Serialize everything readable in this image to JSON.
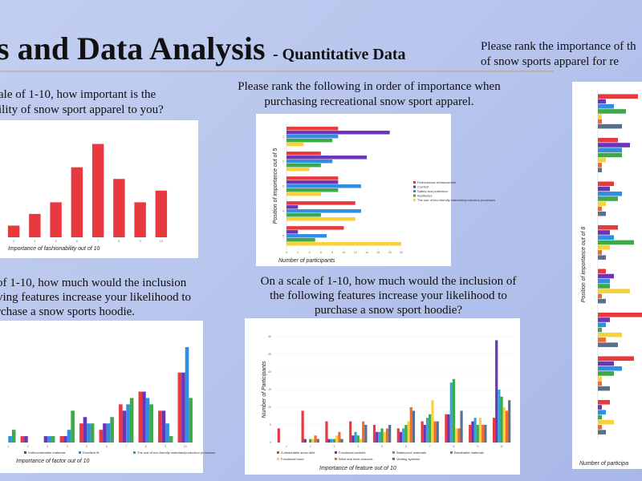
{
  "header": {
    "title": "s and Data Analysis",
    "subtitle": "- Quantitative Data"
  },
  "chart_data": [
    {
      "type": "bar",
      "title": [
        "ale of 1-10, how important is the",
        "ility of snow sport apparel to you?"
      ],
      "xlabel": "Importance of fashionability out of 10",
      "categories": [
        "3",
        "4",
        "5",
        "6",
        "7",
        "8",
        "9",
        "10"
      ],
      "values": [
        1,
        2,
        3,
        6,
        8,
        5,
        3,
        4
      ],
      "color": "#e8393e",
      "ylim": [
        0,
        9
      ]
    },
    {
      "type": "hbar",
      "title": [
        "Please rank the following in order of importance when",
        "purchasing recreational snow sport apparel."
      ],
      "xlabel": "Number of participants",
      "ylabel": "Position of importance out of 5",
      "categories": [
        "1",
        "2",
        "3",
        "4",
        "5"
      ],
      "xlim": [
        0,
        20
      ],
      "xticks": [
        0,
        2,
        4,
        6,
        8,
        10,
        12,
        14,
        16,
        18,
        20
      ],
      "series": [
        {
          "name": "Performance enhancement",
          "color": "#e8393e",
          "values": [
            9,
            6,
            9,
            12,
            10
          ]
        },
        {
          "name": "Comfort",
          "color": "#6a35b8",
          "values": [
            18,
            14,
            9,
            2,
            2
          ]
        },
        {
          "name": "Safety and protection",
          "color": "#2f8fe0",
          "values": [
            9,
            8,
            13,
            13,
            7
          ]
        },
        {
          "name": "Aesthetics",
          "color": "#3fa84a",
          "values": [
            8,
            6,
            9,
            6,
            5
          ]
        },
        {
          "name": "The use of eco-friendly materials/production processes",
          "color": "#f7d23a",
          "values": [
            3,
            4,
            6,
            12,
            20
          ]
        }
      ]
    },
    {
      "type": "bar",
      "title": [
        "of 1-10, how much would the inclusion",
        "ving features increase your likelihood to",
        "rchase a snow sports hoodie."
      ],
      "xlabel": "Importance of factor out of 10",
      "categories": [
        "1",
        "2",
        "3",
        "4",
        "5",
        "6",
        "7",
        "8",
        "9",
        "10"
      ],
      "ylim": [
        0,
        16
      ],
      "series": [
        {
          "color": "#e8393e",
          "values": [
            0,
            1,
            0,
            1,
            3,
            2,
            6,
            8,
            5,
            11
          ]
        },
        {
          "name": "Soft/comfortable materials",
          "color": "#6a35b8",
          "values": [
            0,
            1,
            1,
            1,
            4,
            3,
            5,
            8,
            5,
            11
          ]
        },
        {
          "name": "Excellent fit",
          "color": "#2f8fe0",
          "values": [
            1,
            0,
            1,
            2,
            3,
            3,
            6,
            7,
            3,
            15
          ]
        },
        {
          "name": "The use of eco-friendly materials/production processes",
          "color": "#3fa84a",
          "values": [
            2,
            0,
            1,
            5,
            3,
            4,
            7,
            6,
            1,
            7
          ]
        }
      ]
    },
    {
      "type": "bar",
      "title": [
        "On a scale of 1-10, how much would the inclusion of",
        "the following features increase your likelihood to",
        "purchase a snow sport hoodie?"
      ],
      "xlabel": "Importance of feature out of 10",
      "ylabel": "Number of Participants",
      "categories": [
        "1",
        "2",
        "3",
        "4",
        "5",
        "6",
        "7",
        "8",
        "9",
        "10"
      ],
      "ylim": [
        0,
        30
      ],
      "yticks": [
        0,
        5,
        10,
        15,
        20,
        25,
        30
      ],
      "series": [
        {
          "name": "A detachable snow skirt",
          "color": "#e8393e",
          "values": [
            4,
            9,
            6,
            6,
            5,
            4,
            6,
            8,
            5,
            7
          ]
        },
        {
          "name": "Functional pockets",
          "color": "#6a35b8",
          "values": [
            0,
            1,
            1,
            2,
            3,
            3,
            5,
            8,
            6,
            29
          ]
        },
        {
          "name": "Waterproof materials",
          "color": "#2fa8d8",
          "values": [
            0,
            0,
            1,
            3,
            3,
            4,
            7,
            17,
            7,
            15
          ]
        },
        {
          "name": "Breathable materials",
          "color": "#3fa84a",
          "values": [
            0,
            1,
            1,
            2,
            4,
            5,
            8,
            18,
            5,
            13
          ]
        },
        {
          "name": "Functional hood",
          "color": "#f7d23a",
          "values": [
            0,
            1,
            2,
            1,
            3,
            6,
            12,
            4,
            7,
            10
          ]
        },
        {
          "name": "Wind and neck closures",
          "color": "#f26b2a",
          "values": [
            0,
            2,
            3,
            6,
            4,
            10,
            6,
            4,
            5,
            9
          ]
        },
        {
          "name": "Venting systems",
          "color": "#5a6f8c",
          "values": [
            0,
            1,
            1,
            5,
            5,
            9,
            6,
            9,
            5,
            12
          ]
        }
      ]
    },
    {
      "type": "hbar",
      "title": [
        "Please rank the importance of th",
        "of snow sports apparel for re"
      ],
      "xlabel": "Number of participa",
      "ylabel": "Position of importance out of 8",
      "xlim": [
        0,
        12
      ],
      "series": [
        {
          "color": "#e8393e",
          "values": [
            10,
            5,
            4,
            5,
            2,
            12,
            9,
            3
          ]
        },
        {
          "color": "#6a35b8",
          "values": [
            2,
            8,
            3,
            3,
            4,
            3,
            4,
            1
          ]
        },
        {
          "color": "#2f8fe0",
          "values": [
            4,
            6,
            6,
            4,
            3,
            2,
            6,
            2
          ]
        },
        {
          "color": "#3fa84a",
          "values": [
            7,
            6,
            5,
            9,
            3,
            1,
            4,
            1
          ]
        },
        {
          "color": "#f7d23a",
          "values": [
            1,
            2,
            2,
            3,
            8,
            6,
            1,
            4
          ]
        },
        {
          "color": "#f26b2a",
          "values": [
            1,
            1,
            1,
            1,
            1,
            2,
            1,
            1
          ]
        },
        {
          "color": "#5a6f8c",
          "values": [
            6,
            1,
            2,
            2,
            2,
            5,
            3,
            2
          ]
        }
      ]
    }
  ]
}
